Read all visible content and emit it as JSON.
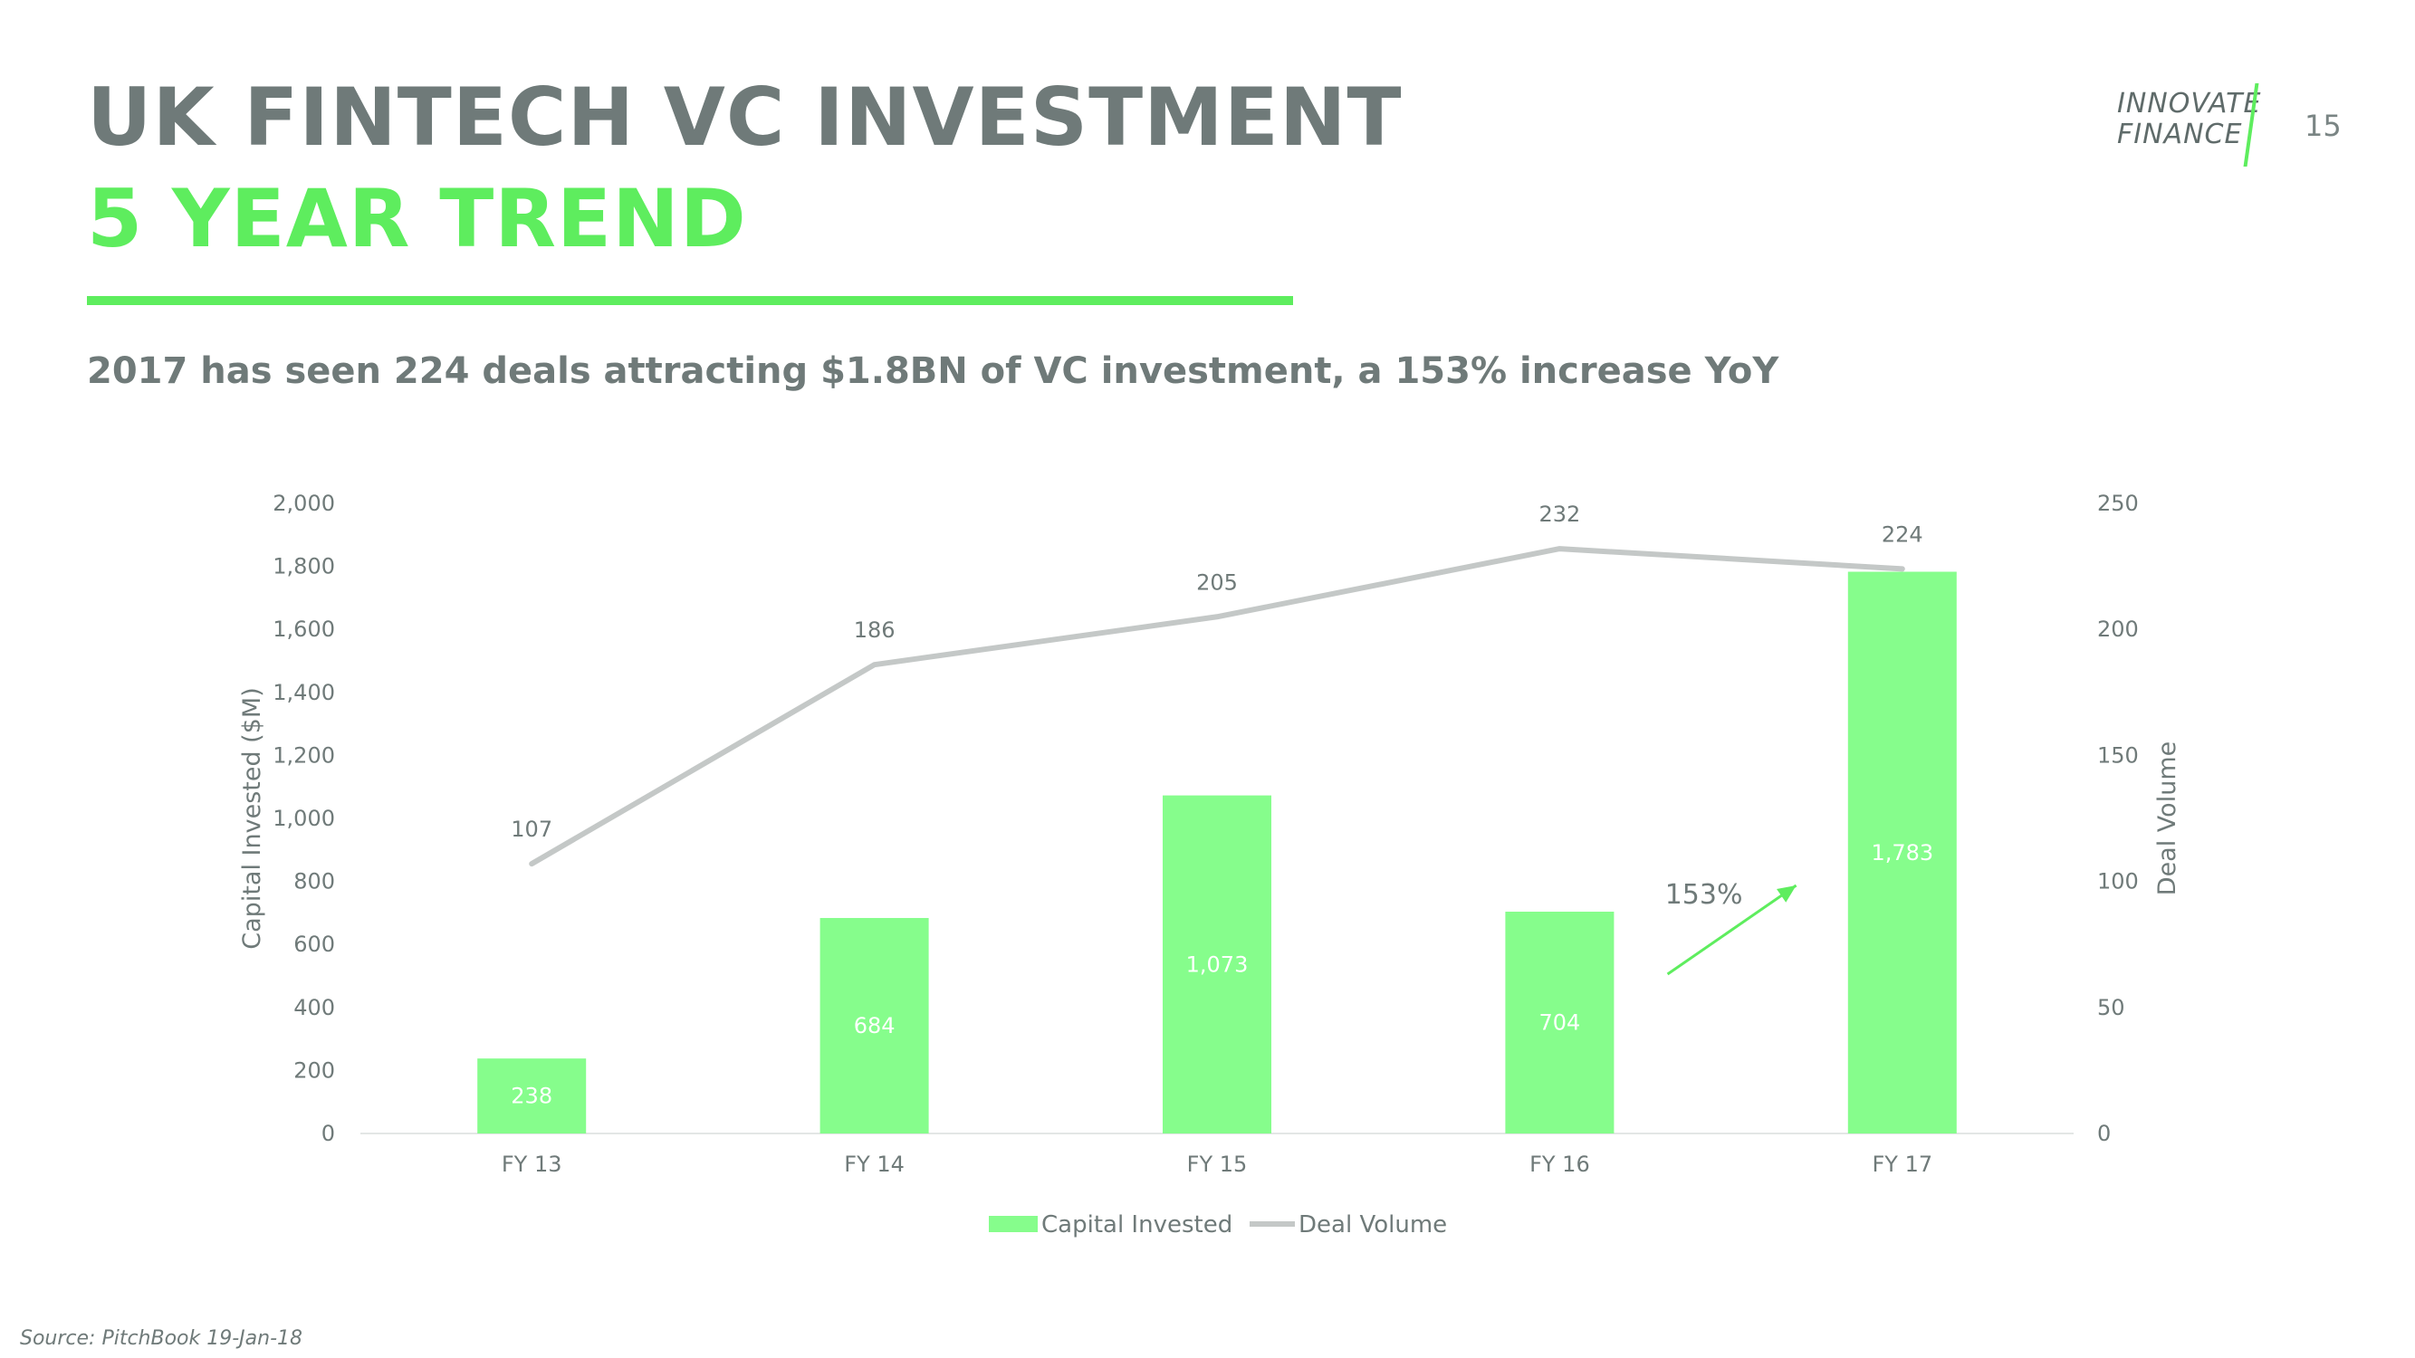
{
  "header": {
    "title_line1": "UK FINTECH VC INVESTMENT",
    "title_line2": "5 YEAR TREND",
    "subtitle": "2017 has seen 224 deals attracting $1.8BN of VC investment, a 153% increase YoY"
  },
  "logo": {
    "line1": "INNOVATE",
    "line2": "FINANCE"
  },
  "page_number": "15",
  "source": "Source: PitchBook 19-Jan-18",
  "colors": {
    "accent": "#5eed5e",
    "bar": "#86fd8c",
    "line": "#c4c8c7",
    "text_gray": "#6f7a79"
  },
  "chart_data": {
    "type": "bar",
    "categories": [
      "FY 13",
      "FY 14",
      "FY 15",
      "FY 16",
      "FY 17"
    ],
    "series": [
      {
        "name": "Capital Invested",
        "type": "bar",
        "axis": "left",
        "values": [
          238,
          684,
          1073,
          704,
          1783
        ]
      },
      {
        "name": "Deal Volume",
        "type": "line",
        "axis": "right",
        "values": [
          107,
          186,
          205,
          232,
          224
        ]
      }
    ],
    "ylabel": "Capital Invested ($M)",
    "ylabel_right": "Deal Volume",
    "ylim": [
      0,
      2000
    ],
    "ylim_right": [
      0,
      250
    ],
    "yticks": [
      "0",
      "200",
      "400",
      "600",
      "800",
      "1,000",
      "1,200",
      "1,400",
      "1,600",
      "1,800",
      "2,000"
    ],
    "yticks_right": [
      "0",
      "50",
      "100",
      "150",
      "200",
      "250"
    ],
    "bar_labels": [
      "238",
      "684",
      "1,073",
      "704",
      "1,783"
    ],
    "line_labels": [
      "107",
      "186",
      "205",
      "232",
      "224"
    ],
    "legend": {
      "position": "bottom",
      "entries": [
        "Capital Invested",
        "Deal Volume"
      ]
    },
    "annotation": {
      "text": "153%",
      "between": [
        "FY 16",
        "FY 17"
      ]
    },
    "grid": false
  }
}
